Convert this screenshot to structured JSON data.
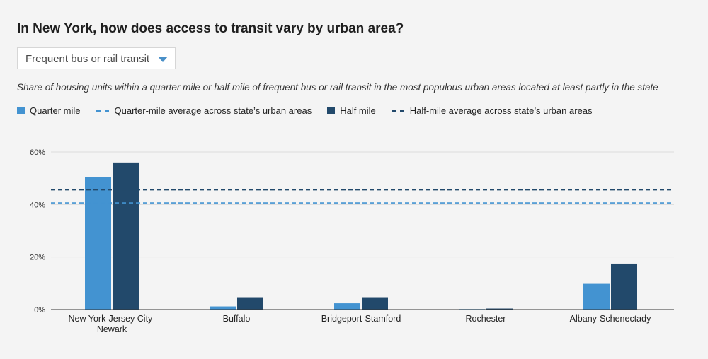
{
  "title": "In New York, how does access to transit vary by urban area?",
  "dropdown": {
    "selected": "Frequent bus or rail transit"
  },
  "subtitle": "Share of housing units within a quarter mile or half mile of frequent bus or rail transit in the most populous urban areas located at least partly in the state",
  "legend": {
    "quarter_mile": "Quarter mile",
    "quarter_avg": "Quarter-mile average across state’s urban areas",
    "half_mile": "Half mile",
    "half_avg": "Half-mile average across state’s urban areas"
  },
  "colors": {
    "quarter": "#4393d1",
    "half": "#22496b",
    "quarter_avg": "#4393d1",
    "half_avg": "#22496b"
  },
  "chart_data": {
    "type": "bar",
    "title": "In New York, how does access to transit vary by urban area?",
    "categories": [
      [
        "New York-Jersey City-",
        "Newark"
      ],
      [
        "Buffalo"
      ],
      [
        "Bridgeport-Stamford"
      ],
      [
        "Rochester"
      ],
      [
        "Albany-Schenectady"
      ]
    ],
    "series": [
      {
        "name": "Quarter mile",
        "values": [
          50.5,
          1.2,
          2.4,
          0.2,
          9.8
        ]
      },
      {
        "name": "Half mile",
        "values": [
          56.0,
          4.7,
          4.7,
          0.4,
          17.5
        ]
      }
    ],
    "reference_lines": [
      {
        "name": "Quarter-mile average across state’s urban areas",
        "value": 40.6
      },
      {
        "name": "Half-mile average across state’s urban areas",
        "value": 45.6
      }
    ],
    "yticks": [
      0,
      20,
      40,
      60
    ],
    "ytick_labels": [
      "0%",
      "20%",
      "40%",
      "60%"
    ],
    "ylim": [
      0,
      60
    ],
    "grid": true,
    "legend_position": "top-left"
  }
}
